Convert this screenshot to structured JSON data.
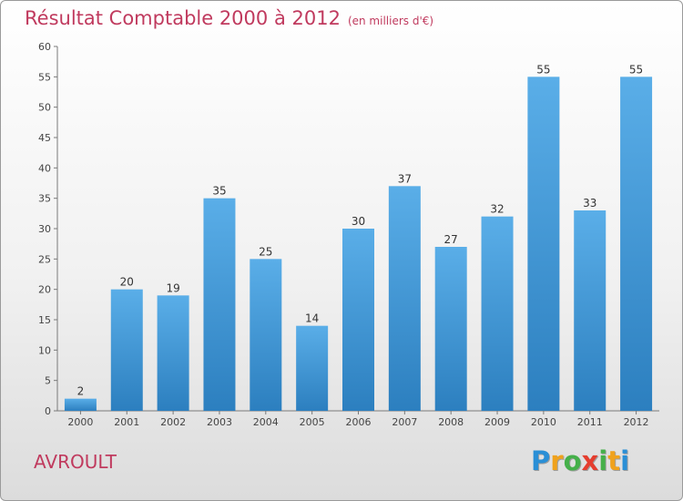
{
  "title": "Résultat Comptable 2000 à 2012",
  "unit_label": "(en milliers d'€)",
  "commune": "AVROULT",
  "logo": {
    "letters": [
      "P",
      "r",
      "o",
      "x",
      "i",
      "t",
      "i"
    ],
    "colors": [
      "#2a8fd6",
      "#f0a21c",
      "#45b04a",
      "#e53d2e",
      "#45b04a",
      "#f0a21c",
      "#2a8fd6"
    ]
  },
  "colors": {
    "bar_top": "#5aaee8",
    "bar_bottom": "#2c7fbf",
    "title": "#c03a5e"
  },
  "chart_data": {
    "type": "bar",
    "categories": [
      "2000",
      "2001",
      "2002",
      "2003",
      "2004",
      "2005",
      "2006",
      "2007",
      "2008",
      "2009",
      "2010",
      "2011",
      "2012"
    ],
    "values": [
      2,
      20,
      19,
      35,
      25,
      14,
      30,
      37,
      27,
      32,
      55,
      33,
      55
    ],
    "ylim": [
      0,
      60
    ],
    "yticks": [
      0,
      5,
      10,
      15,
      20,
      25,
      30,
      35,
      40,
      45,
      50,
      55,
      60
    ],
    "grid": false
  }
}
